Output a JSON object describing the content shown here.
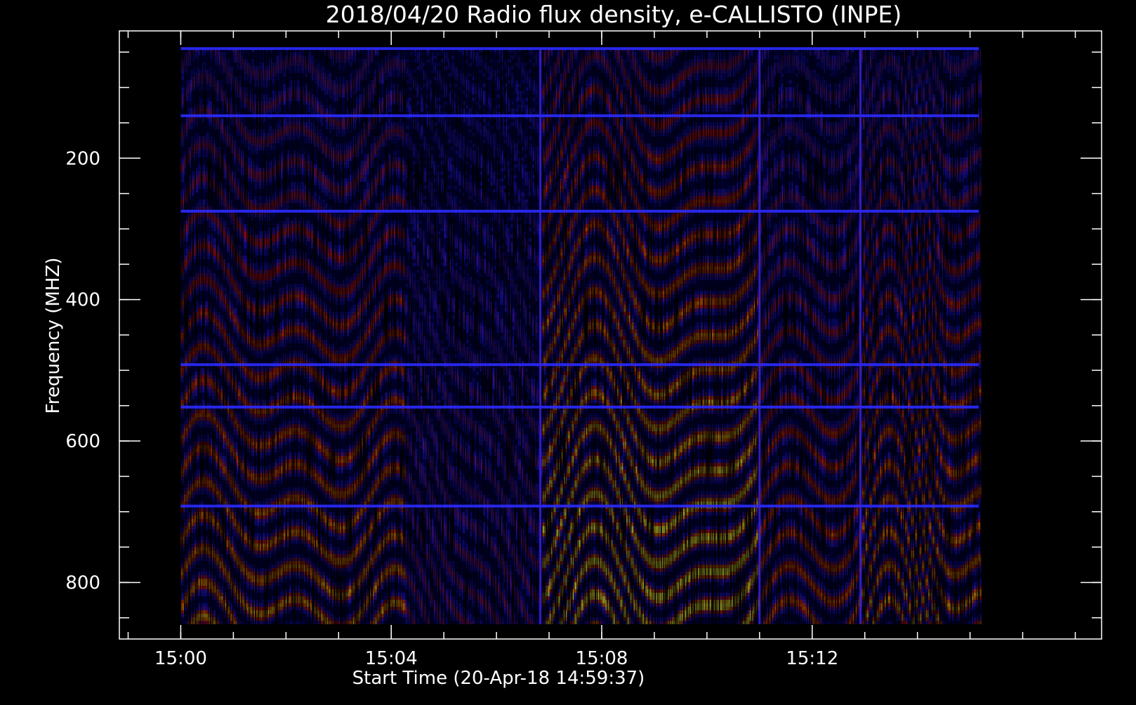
{
  "chart_data": {
    "type": "heatmap",
    "title": "2018/04/20  Radio flux density, e-CALLISTO (INPE)",
    "xlabel": "Start Time (20-Apr-18 14:59:37)",
    "ylabel": "Frequency (MHZ)",
    "x_range": [
      "14:58:50",
      "15:17:30"
    ],
    "x_data_range": [
      "15:00:00",
      "15:15:10"
    ],
    "y_range": [
      20,
      880
    ],
    "y_data_range": [
      45,
      870
    ],
    "y_inverted": true,
    "x_ticks": [
      {
        "value": "15:00",
        "label": "15:00"
      },
      {
        "value": "15:04",
        "label": "15:04"
      },
      {
        "value": "15:08",
        "label": "15:08"
      },
      {
        "value": "15:12",
        "label": "15:12"
      }
    ],
    "x_minor_interval_minutes": 1,
    "y_ticks": [
      {
        "value": 200,
        "label": "200"
      },
      {
        "value": 400,
        "label": "400"
      },
      {
        "value": 600,
        "label": "600"
      },
      {
        "value": 800,
        "label": "800"
      }
    ],
    "y_minor_interval_mhz": 50,
    "grid": false,
    "legend": "none",
    "colormap": [
      "#000000",
      "#1414ff",
      "#5a18c8",
      "#d81414",
      "#ff7a00",
      "#ffff3c"
    ],
    "panel_background": "#000000",
    "axis_color": "#ffffff",
    "horizontal_interference_lines_mhz": [
      45,
      140,
      275,
      492,
      552,
      692
    ],
    "vertical_discontinuities": [
      "15:06:50",
      "15:11:00",
      "15:12:55"
    ]
  }
}
